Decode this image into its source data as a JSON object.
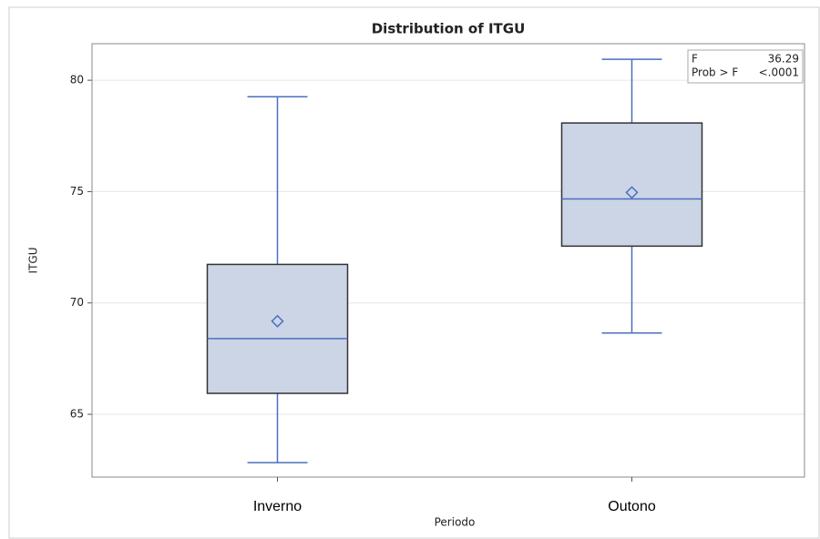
{
  "chart_data": {
    "type": "box",
    "title": "Distribution of ITGU",
    "x_label": "Periodo",
    "y_label": "ITGU",
    "categories": [
      "Inverno",
      "Outono"
    ],
    "boxes": [
      {
        "min": 62.83,
        "q1": 65.94,
        "median": 68.4,
        "q3": 71.73,
        "max": 79.26,
        "mean": 69.18
      },
      {
        "min": 68.65,
        "q1": 72.55,
        "median": 74.67,
        "q3": 78.08,
        "max": 80.94,
        "mean": 74.96
      }
    ],
    "box_color": "#cbd5e6",
    "line_color": "#4a6fbf",
    "ylim": [
      62.18,
      81.64
    ],
    "yticks": [
      65,
      70,
      75,
      80
    ],
    "grid": true,
    "inset": [
      [
        "F",
        "36.29"
      ],
      [
        "Prob > F",
        "<.0001"
      ]
    ]
  }
}
